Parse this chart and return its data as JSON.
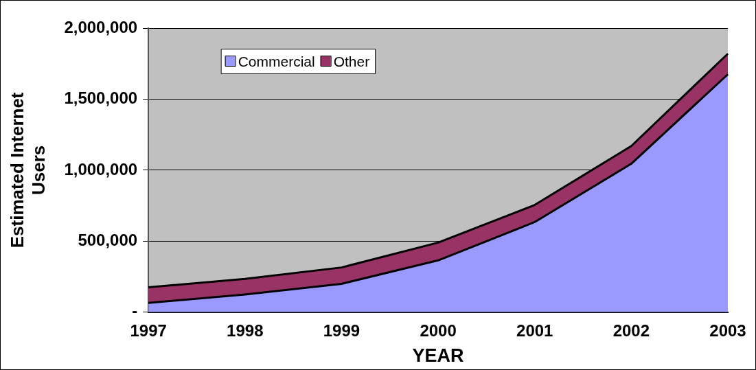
{
  "chart_data": {
    "type": "area",
    "stacked": true,
    "xlabel": "YEAR",
    "ylabel": "Estimated Internet Users",
    "categories": [
      "1997",
      "1998",
      "1999",
      "2000",
      "2001",
      "2002",
      "2003"
    ],
    "series": [
      {
        "name": "Commercial",
        "color": "#9999ff",
        "values": [
          65000,
          125000,
          200000,
          365000,
          635000,
          1045000,
          1675000
        ]
      },
      {
        "name": "Other",
        "color": "#993366",
        "values": [
          110000,
          110000,
          115000,
          125000,
          120000,
          125000,
          145000
        ]
      }
    ],
    "ylim": [
      0,
      2000000
    ],
    "yticks": [
      {
        "value": 0,
        "label": "-"
      },
      {
        "value": 500000,
        "label": "500,000"
      },
      {
        "value": 1000000,
        "label": "1,000,000"
      },
      {
        "value": 1500000,
        "label": "1,500,000"
      },
      {
        "value": 2000000,
        "label": "2,000,000"
      }
    ],
    "grid": "y",
    "legend": "top left"
  }
}
